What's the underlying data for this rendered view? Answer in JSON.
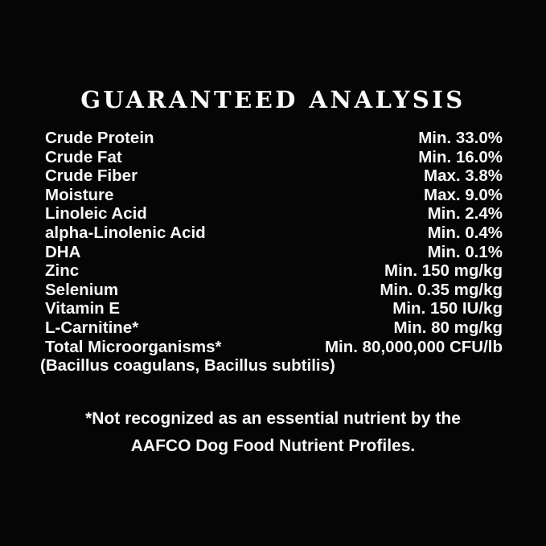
{
  "label": {
    "title": "GUARANTEED ANALYSIS",
    "rows": [
      {
        "name": "Crude Protein",
        "value": "Min. 33.0%"
      },
      {
        "name": "Crude Fat",
        "value": "Min. 16.0%"
      },
      {
        "name": "Crude Fiber",
        "value": "Max. 3.8%"
      },
      {
        "name": "Moisture",
        "value": "Max. 9.0%"
      },
      {
        "name": "Linoleic Acid",
        "value": "Min. 2.4%"
      },
      {
        "name": "alpha-Linolenic Acid",
        "value": "Min. 0.4%"
      },
      {
        "name": "DHA",
        "value": "Min. 0.1%"
      },
      {
        "name": "Zinc",
        "value": "Min. 150 mg/kg"
      },
      {
        "name": "Selenium",
        "value": "Min. 0.35 mg/kg"
      },
      {
        "name": "Vitamin E",
        "value": "Min. 150 IU/kg"
      },
      {
        "name": "L-Carnitine*",
        "value": "Min. 80 mg/kg"
      },
      {
        "name": "Total Microorganisms*",
        "value": "Min. 80,000,000 CFU/lb"
      }
    ],
    "species_note": "(Bacillus coagulans, Bacillus subtilis)",
    "footnote_line1": "*Not recognized as an essential nutrient by the",
    "footnote_line2": "AAFCO Dog Food Nutrient Profiles.",
    "colors": {
      "background": "#050505",
      "text": "#f7f7f7"
    }
  }
}
